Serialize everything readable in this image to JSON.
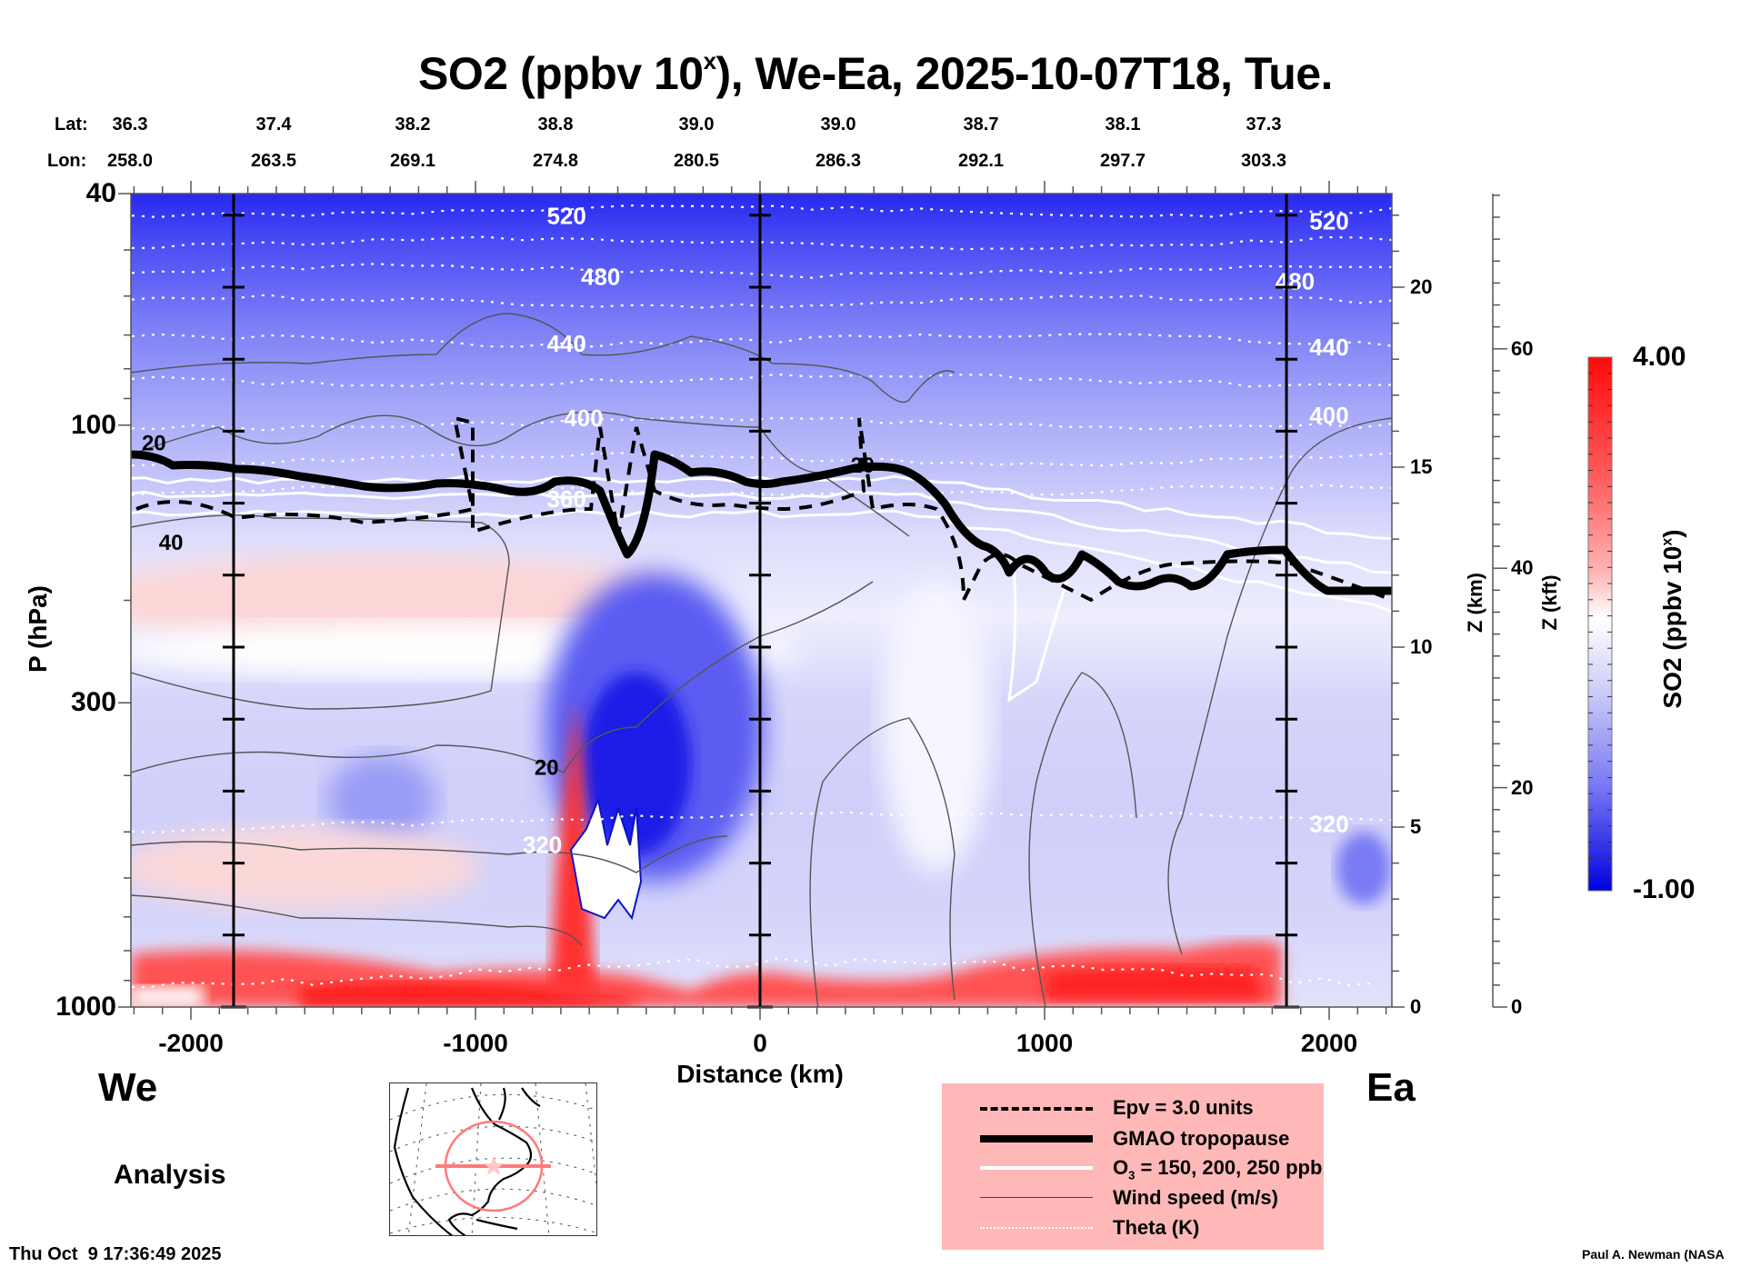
{
  "title": {
    "main": "SO2 (ppbv 10",
    "sup": "x",
    "rest": "), We-Ea, 2025-10-07T18, Tue."
  },
  "latlon": {
    "lat_prefix": "Lat:",
    "lon_prefix": "Lon:",
    "lat": [
      "36.3",
      "37.4",
      "38.2",
      "38.8",
      "39.0",
      "39.0",
      "38.7",
      "38.1",
      "37.3"
    ],
    "lon": [
      "258.0",
      "263.5",
      "269.1",
      "274.8",
      "280.5",
      "286.3",
      "292.1",
      "297.7",
      "303.3"
    ]
  },
  "chart_data": {
    "type": "heatmap",
    "subtype": "vertical cross-section contour plot",
    "title": "SO2 (ppbv 10^x), We-Ea, 2025-10-07T18, Tue.",
    "xlabel": "Distance (km)",
    "ylabel": "P (hPa)",
    "xlim": [
      -2215,
      2215
    ],
    "ylim": [
      1000,
      40
    ],
    "yscale": "log",
    "xticks": [
      -2000,
      -1000,
      0,
      1000,
      2000
    ],
    "xtick_labels": [
      "-2000",
      "-1000",
      "0",
      "1000",
      "2000"
    ],
    "yticks": [
      40,
      100,
      300,
      1000
    ],
    "ytick_labels": [
      "40",
      "100",
      "300",
      "1000"
    ],
    "vertical_markers_km": [
      -1850,
      0,
      1850
    ],
    "z_km_axis": {
      "label": "Z (km)",
      "ticks": [
        0,
        5,
        10,
        15,
        20
      ],
      "tick_labels": [
        "0",
        "5",
        "10",
        "15",
        "20"
      ]
    },
    "z_kft_axis": {
      "label": "Z (kft)",
      "ticks": [
        0,
        20,
        40,
        60
      ],
      "tick_labels": [
        "0",
        "20",
        "40",
        "60"
      ]
    },
    "colorbar": {
      "label": "SO2 (ppbv 10",
      "label_sup": "x",
      "label_end": ")",
      "min": -1.0,
      "max": 4.0,
      "min_label": "-1.00",
      "max_label": "4.00",
      "low_color": "#0000e6",
      "mid_color": "#ffffff",
      "high_color": "#ff0a0a"
    },
    "theta_contour_labels": [
      {
        "value": "520",
        "x_km": -680,
        "p": 44
      },
      {
        "value": "480",
        "x_km": -560,
        "p": 56
      },
      {
        "value": "440",
        "x_km": -680,
        "p": 73
      },
      {
        "value": "400",
        "x_km": -620,
        "p": 98
      },
      {
        "value": "360",
        "x_km": -680,
        "p": 135
      },
      {
        "value": "520",
        "x_km": 2000,
        "p": 45
      },
      {
        "value": "480",
        "x_km": 1880,
        "p": 57
      },
      {
        "value": "440",
        "x_km": 2000,
        "p": 74
      },
      {
        "value": "400",
        "x_km": 2000,
        "p": 97
      },
      {
        "value": "320",
        "x_km": -765,
        "p": 530
      },
      {
        "value": "320",
        "x_km": 2000,
        "p": 488
      }
    ],
    "wind_contour_labels": [
      {
        "value": "20",
        "x_km": -2130,
        "p": 108
      },
      {
        "value": "40",
        "x_km": -2070,
        "p": 160
      },
      {
        "value": "20",
        "x_km": -750,
        "p": 390
      },
      {
        "value": "20",
        "x_km": 360,
        "p": 118
      }
    ],
    "features": [
      {
        "name": "near-surface SO2 maximum (red)",
        "x_km": [
          -2215,
          1850
        ],
        "p": [
          800,
          1000
        ],
        "value_approx": 3.5
      },
      {
        "name": "plume column (red)",
        "x_km": [
          -780,
          -700
        ],
        "p": [
          330,
          950
        ],
        "value_approx": 3.8
      },
      {
        "name": "mid-troposphere minimum (blue)",
        "x_km": [
          -650,
          -200
        ],
        "p": [
          230,
          700
        ],
        "value_approx": -0.8
      },
      {
        "name": "upper stratosphere minimum (blue)",
        "x_km": [
          -2215,
          2215
        ],
        "p": [
          40,
          60
        ],
        "value_approx": -0.9
      },
      {
        "name": "upper-troposphere weak maximum (pink)",
        "x_km": [
          -2215,
          -900
        ],
        "p": [
          170,
          220
        ],
        "value_approx": 1.9
      }
    ],
    "legend": [
      {
        "style": "dashed",
        "label": "Epv = 3.0 units"
      },
      {
        "style": "thick",
        "label": "GMAO tropopause"
      },
      {
        "style": "white",
        "label": "O",
        "label_sub": "3",
        "label_rest": " = 150, 200, 250 ppb"
      },
      {
        "style": "thin",
        "label": "Wind speed (m/s)"
      },
      {
        "style": "dotted-white",
        "label": "Theta (K)"
      }
    ],
    "legend_placement": "bottom-center-right"
  },
  "corners": {
    "left_dir": "We",
    "right_dir": "Ea",
    "analysis": "Analysis",
    "timestamp": "Thu Oct  9 17:36:49 2025",
    "credit": "Paul A. Newman (NASA"
  },
  "map": {
    "description": "North America locator map with cross-section line",
    "line_color": "#ff7a7a"
  }
}
